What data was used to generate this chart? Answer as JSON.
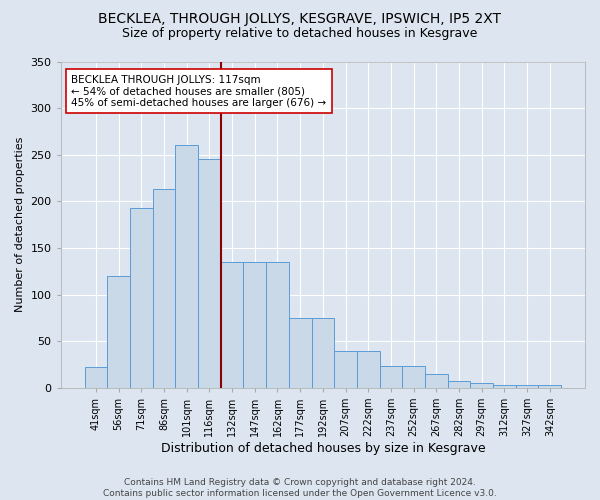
{
  "title": "BECKLEA, THROUGH JOLLYS, KESGRAVE, IPSWICH, IP5 2XT",
  "subtitle": "Size of property relative to detached houses in Kesgrave",
  "xlabel": "Distribution of detached houses by size in Kesgrave",
  "ylabel": "Number of detached properties",
  "bar_values": [
    22,
    120,
    193,
    213,
    260,
    245,
    135,
    135,
    135,
    75,
    75,
    40,
    40,
    23,
    23,
    15,
    7,
    5,
    3,
    3,
    3
  ],
  "categories": [
    "41sqm",
    "56sqm",
    "71sqm",
    "86sqm",
    "101sqm",
    "116sqm",
    "132sqm",
    "147sqm",
    "162sqm",
    "177sqm",
    "192sqm",
    "207sqm",
    "222sqm",
    "237sqm",
    "252sqm",
    "267sqm",
    "282sqm",
    "297sqm",
    "312sqm",
    "327sqm",
    "342sqm"
  ],
  "bar_color": "#c9d9e8",
  "bar_edge_color": "#5b9bd5",
  "vline_x": 5.5,
  "vline_color": "#8b0000",
  "annotation_text": "BECKLEA THROUGH JOLLYS: 117sqm\n← 54% of detached houses are smaller (805)\n45% of semi-detached houses are larger (676) →",
  "annotation_box_color": "#ffffff",
  "annotation_box_edge_color": "#cc0000",
  "bg_color": "#dde6f0",
  "grid_color": "#ffffff",
  "footer": "Contains HM Land Registry data © Crown copyright and database right 2024.\nContains public sector information licensed under the Open Government Licence v3.0.",
  "ylim": [
    0,
    350
  ],
  "title_fontsize": 10,
  "subtitle_fontsize": 9
}
